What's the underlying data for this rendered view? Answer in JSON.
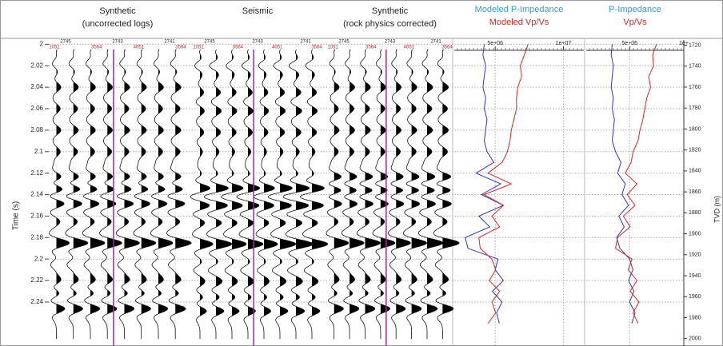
{
  "chart_data": [
    {
      "type": "wiggle",
      "title": [
        "Synthetic",
        "(uncorrected logs)"
      ],
      "header_top": [
        "2745",
        "2743",
        "2741"
      ],
      "header_bottom": [
        "1051",
        "3564",
        "4051",
        "3564"
      ],
      "ylabel": "Time (s)",
      "ylim": [
        1.996,
        2.275
      ],
      "yticks": [
        2,
        2.02,
        2.04,
        2.06,
        2.08,
        2.1,
        2.12,
        2.14,
        2.16,
        2.18,
        2.2,
        2.22,
        2.24
      ],
      "grid": true,
      "events": {
        "time": [
          2.0,
          2.018,
          2.04,
          2.06,
          2.08,
          2.1,
          2.124,
          2.135,
          2.148,
          2.165,
          2.185,
          2.205,
          2.22,
          2.232,
          2.246
        ],
        "amplitude": [
          0.3,
          -0.3,
          0.35,
          0.3,
          0.35,
          0.3,
          0.6,
          0.8,
          0.75,
          0.3,
          1.0,
          -0.4,
          0.4,
          0.4,
          0.7
        ]
      },
      "trace_gain": [
        0.9,
        1,
        1,
        1,
        1.05,
        1,
        1,
        1.1
      ]
    },
    {
      "type": "wiggle",
      "title": [
        "Seismic"
      ],
      "header_top": [
        "2745",
        "2743",
        "2741"
      ],
      "header_bottom": [
        "1051",
        "3564",
        "4051",
        "3564"
      ],
      "events": {
        "time": [
          2.0,
          2.02,
          2.045,
          2.062,
          2.082,
          2.1,
          2.122,
          2.134,
          2.15,
          2.166,
          2.186,
          2.21,
          2.222,
          2.236,
          2.248
        ],
        "amplitude": [
          0.3,
          -0.4,
          0.3,
          0.35,
          0.3,
          0.2,
          0.3,
          0.9,
          0.8,
          0.4,
          1.0,
          -0.4,
          0.3,
          0.4,
          0.6
        ]
      },
      "trace_gain": [
        0.9,
        1.1,
        1,
        1.05,
        0.95,
        1.1,
        1.2,
        1.1
      ]
    },
    {
      "type": "wiggle",
      "title": [
        "Synthetic",
        "(rock physics corrected)"
      ],
      "header_top": [
        "2745",
        "2743",
        "2741"
      ],
      "header_bottom": [
        "1051",
        "3564",
        "4051",
        "3564"
      ],
      "events": {
        "time": [
          2.0,
          2.018,
          2.04,
          2.06,
          2.08,
          2.1,
          2.124,
          2.136,
          2.148,
          2.165,
          2.185,
          2.205,
          2.22,
          2.232,
          2.246
        ],
        "amplitude": [
          0.3,
          -0.3,
          0.35,
          0.3,
          0.35,
          0.3,
          0.7,
          0.85,
          0.75,
          0.3,
          1.0,
          -0.4,
          0.4,
          0.4,
          0.7
        ]
      },
      "trace_gain": [
        1,
        1,
        1.05,
        1,
        1,
        1.05,
        1.1,
        1.15
      ]
    },
    {
      "type": "line",
      "y": [
        2.0,
        2.01,
        2.02,
        2.03,
        2.04,
        2.05,
        2.06,
        2.07,
        2.08,
        2.09,
        2.1,
        2.11,
        2.12,
        2.13,
        2.14,
        2.15,
        2.16,
        2.17,
        2.18,
        2.19,
        2.2,
        2.21,
        2.22,
        2.23,
        2.24,
        2.25,
        2.26
      ],
      "xlim": [
        2000000,
        11500000
      ],
      "xticks": [
        {
          "value": 5000000,
          "label": "5e+06"
        },
        {
          "value": 10000000,
          "label": "1e+07"
        }
      ],
      "x2lim": [
        1.5,
        2.5
      ],
      "series": [
        {
          "name": "Modeled P-Impedance",
          "color": "#3434b8",
          "name_color": "#2c9fd6",
          "values": [
            4200000,
            4100000,
            4300000,
            4200000,
            4100000,
            4300000,
            4200000,
            4400000,
            4300000,
            4200000,
            4400000,
            4900000,
            3600000,
            5400000,
            4000000,
            5600000,
            3800000,
            4600000,
            2800000,
            3000000,
            5200000,
            5000000,
            5600000,
            4800000,
            5500000,
            5100000,
            5300000
          ]
        },
        {
          "name": "Modeled Vp/Vs",
          "color": "#e02424",
          "name_color": "#e02424",
          "axis": "x2",
          "values": [
            2.07,
            2.04,
            2.01,
            2.02,
            1.99,
            1.98,
            1.98,
            1.96,
            1.94,
            1.93,
            1.91,
            1.87,
            1.76,
            1.94,
            1.73,
            1.88,
            1.79,
            1.85,
            1.69,
            1.7,
            1.79,
            1.82,
            1.77,
            1.85,
            1.79,
            1.82,
            1.76
          ]
        }
      ]
    },
    {
      "type": "line",
      "y": [
        2.0,
        2.01,
        2.02,
        2.03,
        2.04,
        2.05,
        2.06,
        2.07,
        2.08,
        2.09,
        2.1,
        2.11,
        2.12,
        2.13,
        2.14,
        2.15,
        2.16,
        2.17,
        2.18,
        2.19,
        2.2,
        2.21,
        2.22,
        2.23,
        2.24,
        2.25,
        2.26
      ],
      "xlim": [
        1000000,
        10000000
      ],
      "xticks": [
        {
          "value": 5000000,
          "label": "5e+06"
        },
        {
          "value": 10000000,
          "label": "1e+"
        }
      ],
      "x2lim": [
        1.5,
        2.5
      ],
      "y2label": "TVD (m)",
      "y2lim": [
        1715,
        2001
      ],
      "y2ticks": [
        1720,
        1740,
        1760,
        1780,
        1800,
        1820,
        1840,
        1860,
        1880,
        1900,
        1920,
        1940,
        1960,
        1980,
        2000
      ],
      "series": [
        {
          "name": "P-Impedance",
          "color": "#3434b8",
          "name_color": "#2c9fd6",
          "values": [
            3400000,
            3300000,
            3500000,
            3400000,
            3300000,
            3500000,
            3400000,
            3600000,
            3500000,
            3400000,
            3700000,
            4200000,
            3900000,
            4600000,
            4300000,
            4900000,
            4000000,
            4500000,
            3800000,
            4100000,
            5000000,
            5300000,
            4900000,
            5400000,
            5000000,
            5500000,
            5200000
          ]
        },
        {
          "name": "Vp/Vs",
          "color": "#e02424",
          "name_color": "#e02424",
          "axis": "x2",
          "values": [
            2.22,
            2.18,
            2.19,
            2.14,
            2.16,
            2.12,
            2.1,
            2.08,
            2.05,
            2.03,
            1.98,
            1.96,
            1.9,
            2.02,
            1.92,
            2.0,
            1.88,
            1.95,
            1.82,
            1.8,
            1.97,
            1.93,
            2.02,
            1.95,
            2.04,
            1.98,
            2.03
          ]
        }
      ]
    }
  ]
}
